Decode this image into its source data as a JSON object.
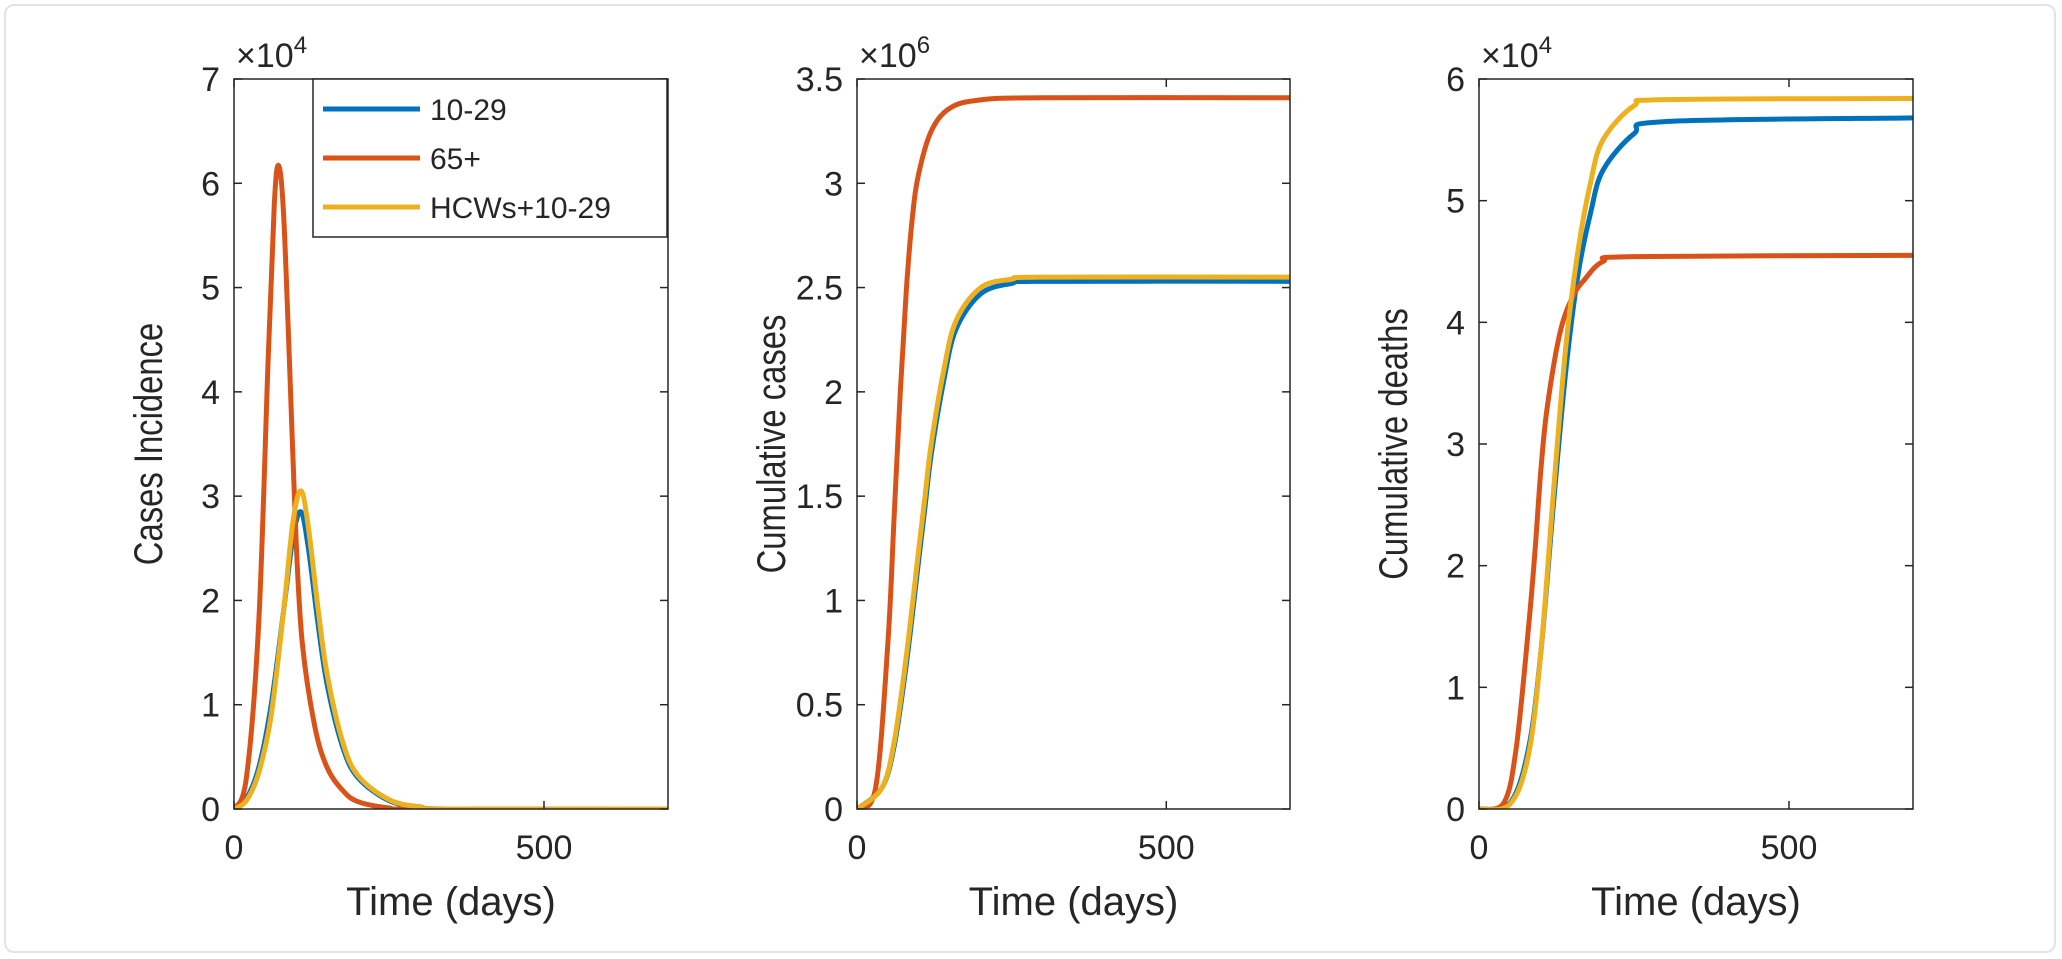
{
  "colors": {
    "10-29": "#0072BD",
    "65+": "#D95319",
    "HCWs+10-29": "#EDB120"
  },
  "chart_data": [
    {
      "type": "line",
      "xlabel": "Time (days)",
      "ylabel": "Cases Incidence",
      "exponent": "4",
      "xlim": [
        0,
        700
      ],
      "ylim": [
        0,
        7
      ],
      "xticks": [
        0,
        500
      ],
      "yticks": [
        0,
        1,
        2,
        3,
        4,
        5,
        6,
        7
      ],
      "grid": false,
      "legend": "top-right",
      "legend_entries": [
        "10-29",
        "65+",
        "HCWs+10-29"
      ],
      "series": [
        {
          "name": "10-29",
          "x": [
            0,
            20,
            40,
            60,
            80,
            95,
            108,
            120,
            135,
            150,
            175,
            200,
            250,
            300,
            350,
            700
          ],
          "y": [
            0,
            0.1,
            0.4,
            1.0,
            1.9,
            2.6,
            2.85,
            2.5,
            1.8,
            1.2,
            0.6,
            0.3,
            0.08,
            0.02,
            0,
            0
          ]
        },
        {
          "name": "65+",
          "x": [
            0,
            20,
            40,
            55,
            65,
            72,
            80,
            90,
            100,
            110,
            130,
            150,
            175,
            200,
            250,
            300,
            700
          ],
          "y": [
            0,
            0.3,
            1.8,
            4.3,
            5.8,
            6.17,
            5.7,
            4.2,
            2.6,
            1.6,
            0.8,
            0.4,
            0.18,
            0.07,
            0.01,
            0,
            0
          ]
        },
        {
          "name": "HCWs+10-29",
          "x": [
            0,
            20,
            40,
            60,
            80,
            95,
            108,
            120,
            135,
            150,
            175,
            200,
            250,
            300,
            350,
            700
          ],
          "y": [
            0,
            0.08,
            0.35,
            0.9,
            1.9,
            2.75,
            3.05,
            2.7,
            1.95,
            1.3,
            0.65,
            0.32,
            0.09,
            0.02,
            0,
            0
          ]
        }
      ]
    },
    {
      "type": "line",
      "xlabel": "Time (days)",
      "ylabel": "Cumulative cases",
      "exponent": "6",
      "xlim": [
        0,
        700
      ],
      "ylim": [
        0,
        3.5
      ],
      "xticks": [
        0,
        500
      ],
      "yticks": [
        0,
        0.5,
        1,
        1.5,
        2,
        2.5,
        3,
        3.5
      ],
      "grid": false,
      "series": [
        {
          "name": "10-29",
          "x": [
            0,
            40,
            60,
            80,
            100,
            110,
            120,
            140,
            160,
            200,
            250,
            300,
            700
          ],
          "y": [
            0,
            0.1,
            0.3,
            0.7,
            1.2,
            1.45,
            1.7,
            2.05,
            2.3,
            2.47,
            2.52,
            2.53,
            2.53
          ]
        },
        {
          "name": "65+",
          "x": [
            0,
            30,
            50,
            60,
            70,
            80,
            90,
            100,
            120,
            150,
            200,
            300,
            700
          ],
          "y": [
            0,
            0.1,
            0.8,
            1.4,
            2.0,
            2.5,
            2.85,
            3.05,
            3.25,
            3.36,
            3.4,
            3.41,
            3.41
          ]
        },
        {
          "name": "HCWs+10-29",
          "x": [
            0,
            40,
            60,
            80,
            100,
            110,
            120,
            140,
            160,
            200,
            250,
            300,
            700
          ],
          "y": [
            0,
            0.1,
            0.32,
            0.74,
            1.25,
            1.5,
            1.75,
            2.1,
            2.34,
            2.5,
            2.54,
            2.55,
            2.55
          ]
        }
      ]
    },
    {
      "type": "line",
      "xlabel": "Time (days)",
      "ylabel": "Cumulative deaths",
      "exponent": "4",
      "xlim": [
        0,
        700
      ],
      "ylim": [
        0,
        6
      ],
      "xticks": [
        0,
        500
      ],
      "yticks": [
        0,
        1,
        2,
        3,
        4,
        5,
        6
      ],
      "grid": false,
      "series": [
        {
          "name": "10-29",
          "x": [
            0,
            50,
            80,
            100,
            120,
            140,
            160,
            180,
            200,
            250,
            300,
            700
          ],
          "y": [
            0,
            0.05,
            0.5,
            1.3,
            2.5,
            3.6,
            4.4,
            4.9,
            5.25,
            5.55,
            5.65,
            5.68
          ]
        },
        {
          "name": "65+",
          "x": [
            0,
            40,
            60,
            80,
            90,
            100,
            110,
            130,
            150,
            170,
            200,
            250,
            700
          ],
          "y": [
            0,
            0.05,
            0.5,
            1.5,
            2.1,
            2.8,
            3.3,
            3.9,
            4.2,
            4.35,
            4.5,
            4.54,
            4.55
          ]
        },
        {
          "name": "HCWs+10-29",
          "x": [
            0,
            50,
            80,
            100,
            120,
            140,
            160,
            180,
            200,
            250,
            300,
            700
          ],
          "y": [
            0,
            0.04,
            0.45,
            1.3,
            2.6,
            3.8,
            4.6,
            5.15,
            5.5,
            5.78,
            5.83,
            5.84
          ]
        }
      ]
    }
  ]
}
